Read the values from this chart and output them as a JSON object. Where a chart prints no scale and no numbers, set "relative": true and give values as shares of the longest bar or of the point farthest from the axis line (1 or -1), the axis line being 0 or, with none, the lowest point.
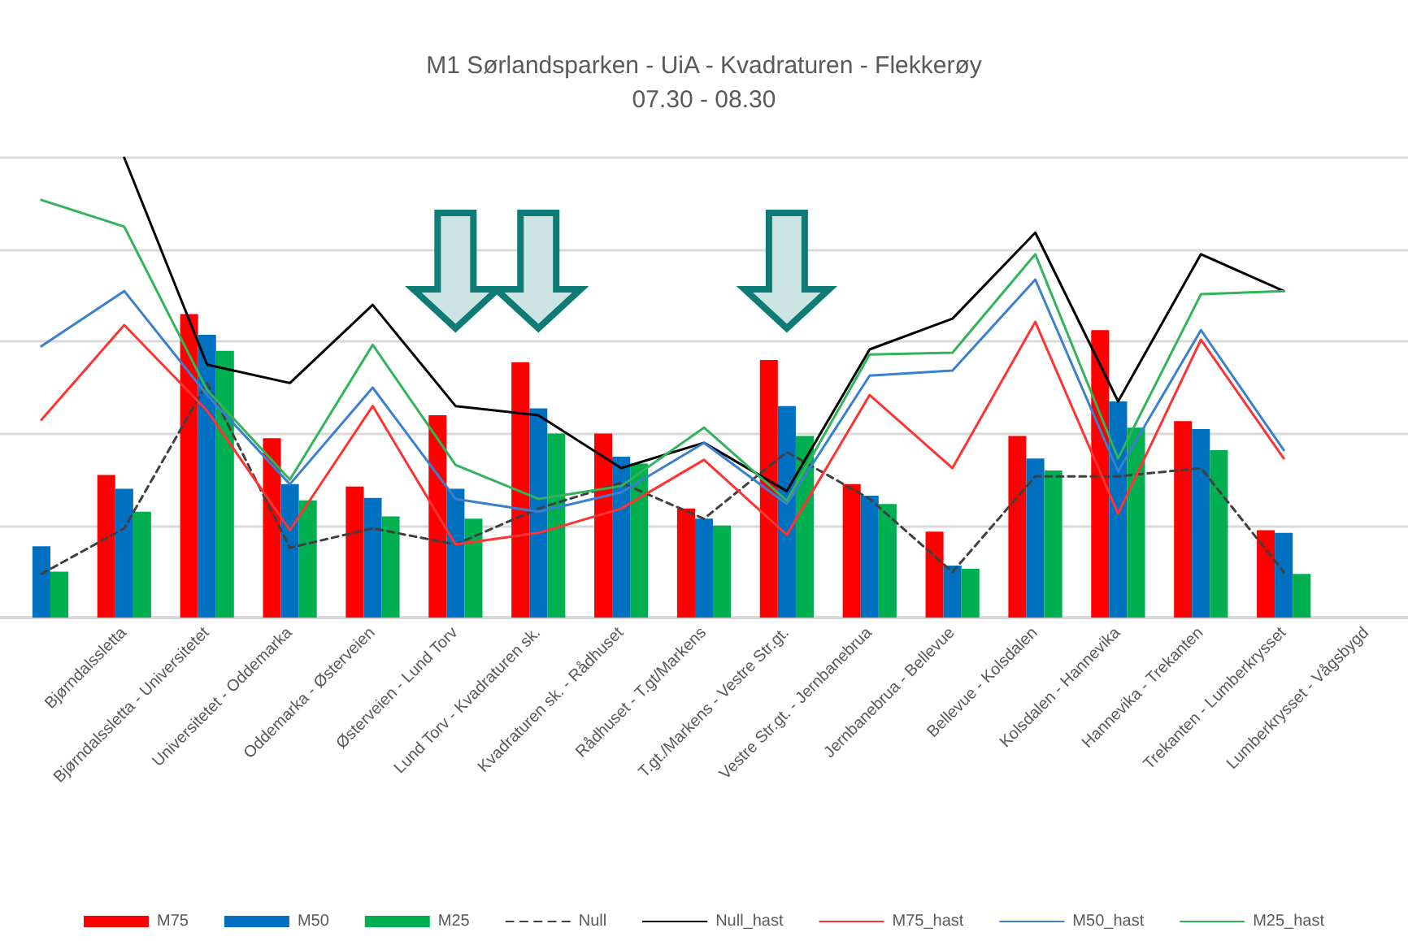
{
  "chart_data": {
    "type": "bar",
    "title": "M1 Sørlandsparken - UiA - Kvadraturen - Flekkerøy",
    "subtitle": "07.30 - 08.30",
    "relative": true,
    "grid": "y",
    "legend": "bottom",
    "marker": "none",
    "categories": [
      null,
      "Bjørndalssletta",
      "Bjørndalssletta - Universitetet",
      "Universitetet - Oddemarka",
      "Oddemarka - Østerveien",
      "Østerveien - Lund Torv",
      "Lund Torv - Kvadraturen sk.",
      "Kvadraturen sk. - Rådhuset",
      "Rådhuset - T.gt/Markens",
      "T.gt./Markens - Vestre Str.gt.",
      "Vestre Str.gt. - Jernbanebrua",
      "Jernbanebrua - Bellevue",
      "Bellevue - Kolsdalen",
      "Kolsdalen - Hannevika",
      "Hannevika - Trekanten",
      "Trekanten - Lumberkrysset",
      "Lumberkrysset - Vågsbygd"
    ],
    "series": [
      {
        "name": "M75",
        "color": "#ff0000",
        "values": [
          null,
          0.31,
          0.66,
          0.39,
          0.285,
          0.44,
          0.555,
          0.4,
          0.237,
          0.56,
          0.29,
          0.187,
          0.395,
          0.625,
          0.427,
          0.19,
          null
        ]
      },
      {
        "name": "M50",
        "color": "#0070c0",
        "values": [
          0.155,
          0.28,
          0.615,
          0.29,
          0.26,
          0.28,
          0.455,
          0.35,
          0.215,
          0.46,
          0.265,
          0.113,
          0.346,
          0.47,
          0.41,
          0.184,
          null
        ]
      },
      {
        "name": "M25",
        "color": "#00b050",
        "values": [
          0.1,
          0.23,
          0.58,
          0.255,
          0.22,
          0.215,
          0.4,
          0.335,
          0.2,
          0.395,
          0.247,
          0.106,
          0.32,
          0.413,
          0.364,
          0.095,
          null
        ]
      },
      {
        "name": "Null",
        "type": "line",
        "line_style": "dashed",
        "color": "#404040",
        "values": [
          0.095,
          0.194,
          0.51,
          0.152,
          0.194,
          0.159,
          0.237,
          0.293,
          0.215,
          0.36,
          0.258,
          0.099,
          0.307,
          0.307,
          0.325,
          0.099,
          null
        ]
      },
      {
        "name": "Null_hast",
        "type": "line",
        "line_style": "solid",
        "color": "#000000",
        "values": [
          null,
          1.0,
          0.55,
          0.51,
          0.68,
          0.46,
          0.44,
          0.325,
          0.38,
          0.275,
          0.583,
          0.65,
          0.837,
          0.47,
          0.79,
          0.71,
          null
        ]
      },
      {
        "name": "M75_hast",
        "type": "line",
        "line_style": "solid",
        "color": "#ff3333",
        "values": [
          0.43,
          0.636,
          0.45,
          0.19,
          0.46,
          0.159,
          0.184,
          0.237,
          0.343,
          0.18,
          0.484,
          0.325,
          0.643,
          0.226,
          0.604,
          0.346,
          null
        ]
      },
      {
        "name": "M50_hast",
        "type": "line",
        "line_style": "solid",
        "color": "#3a7fd0",
        "values": [
          0.59,
          0.71,
          0.484,
          0.29,
          0.5,
          0.258,
          0.23,
          0.272,
          0.38,
          0.247,
          0.526,
          0.537,
          0.735,
          0.318,
          0.625,
          0.364,
          null
        ]
      },
      {
        "name": "M25_hast",
        "type": "line",
        "line_style": "solid",
        "color": "#33b35a",
        "values": [
          0.908,
          0.85,
          0.495,
          0.3,
          0.593,
          0.332,
          0.258,
          0.286,
          0.413,
          0.254,
          0.572,
          0.576,
          0.79,
          0.346,
          0.703,
          0.71,
          null
        ]
      }
    ]
  }
}
